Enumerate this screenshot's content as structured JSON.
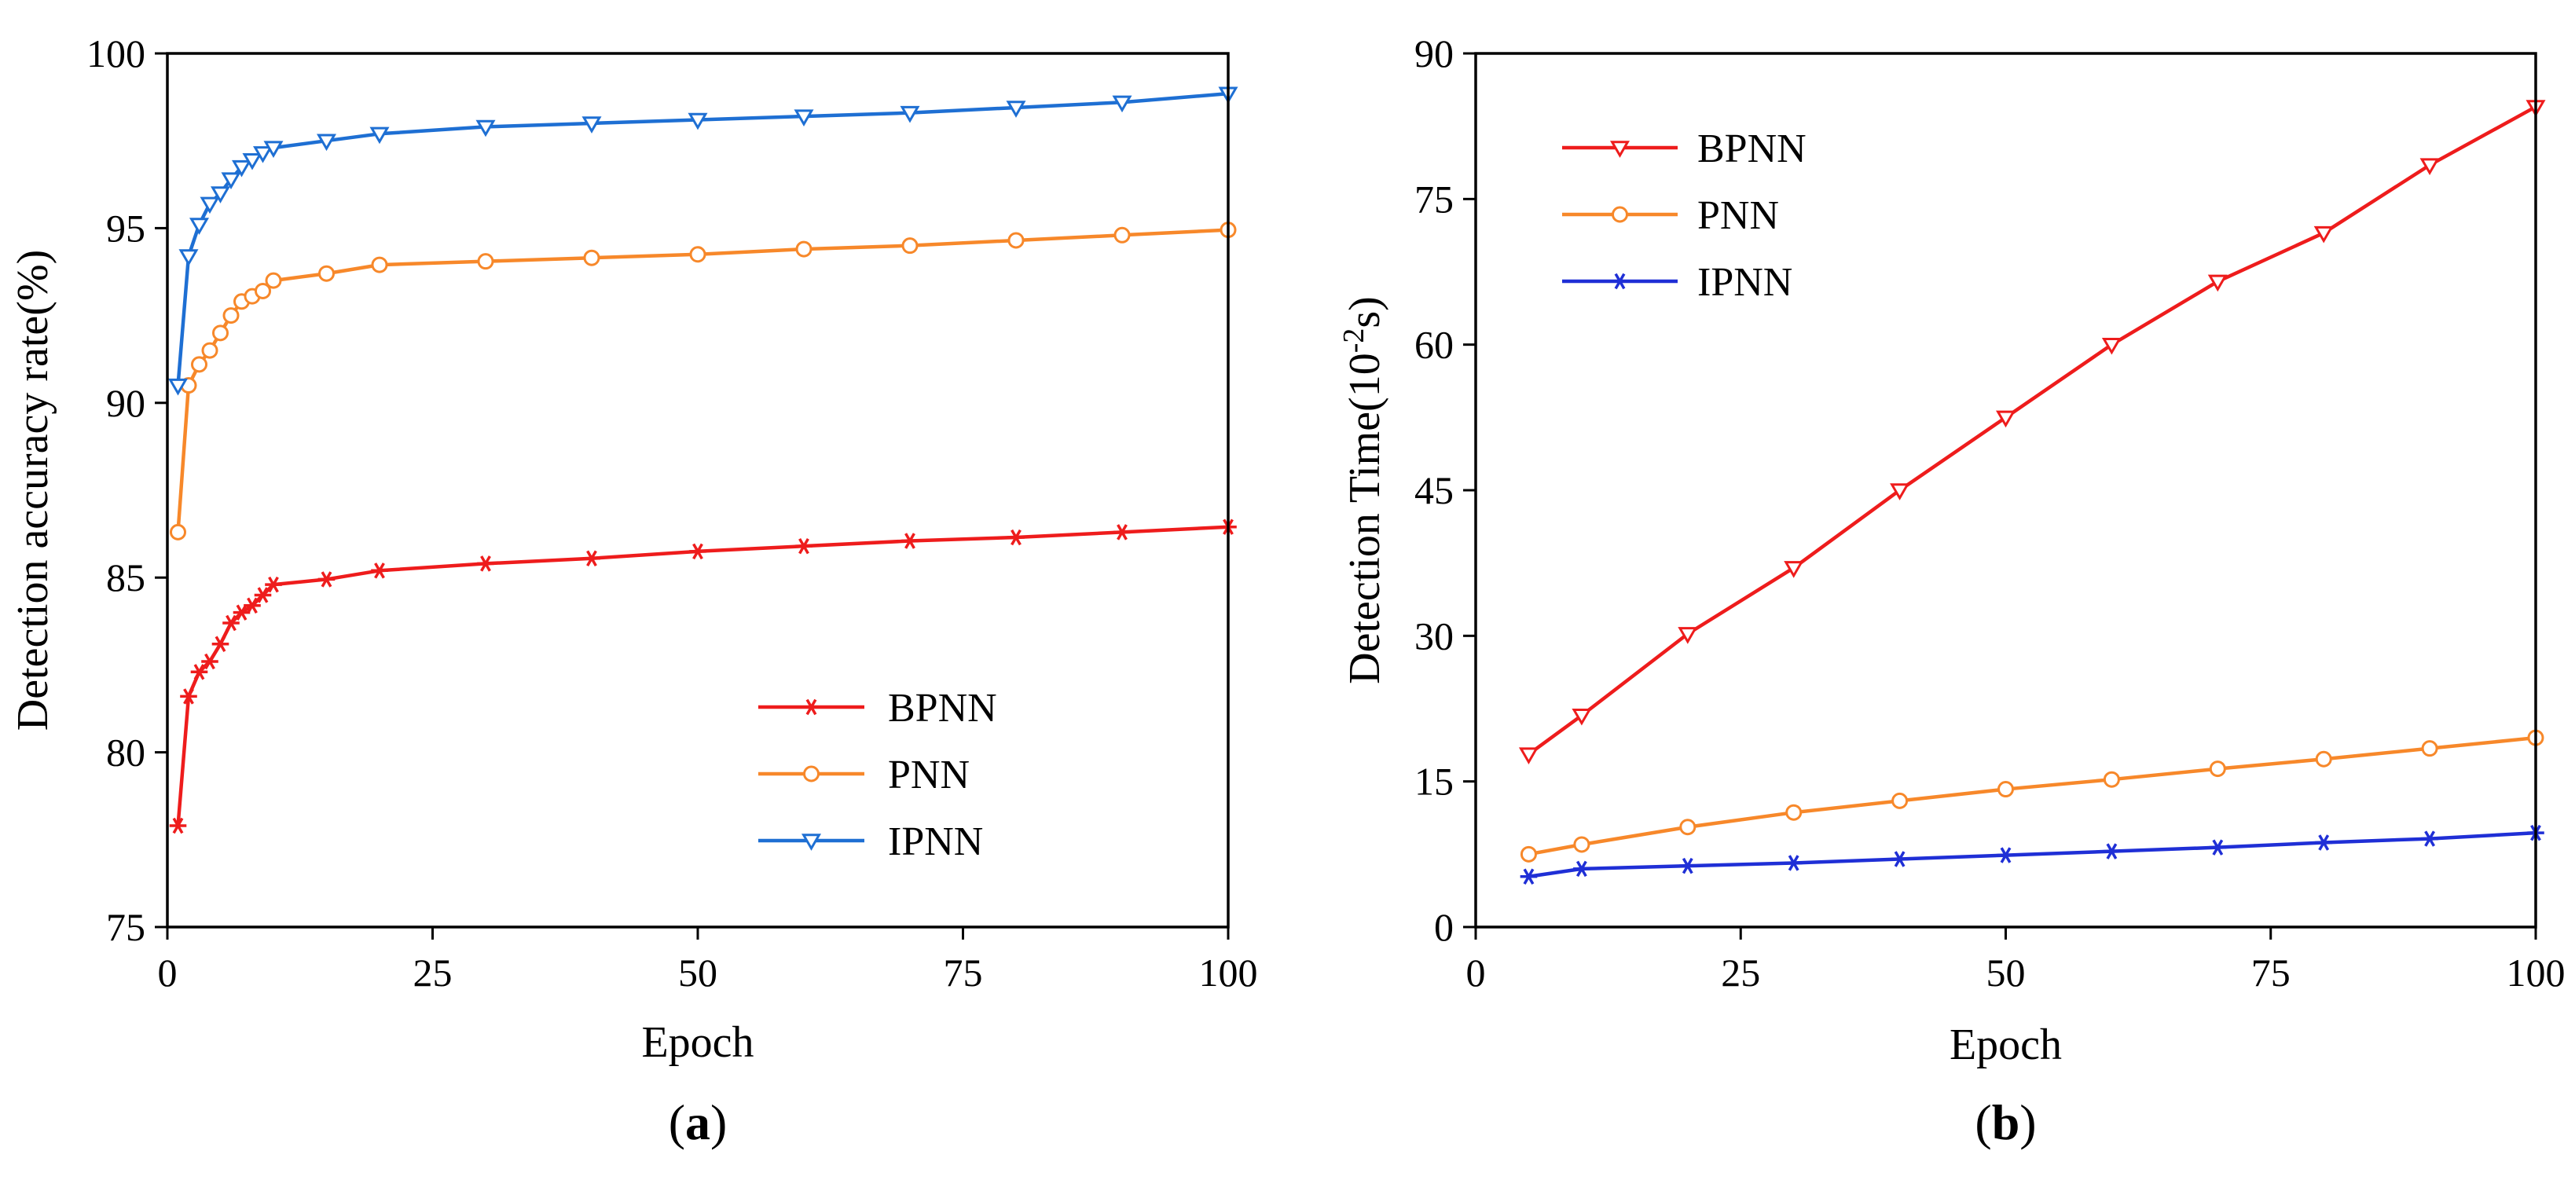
{
  "colors": {
    "BPNN": "#ee1c1c",
    "PNN": "#f7882a",
    "IPNN": "#1e6fd3",
    "IPNN_b": "#1f2fd6"
  },
  "chart_data": [
    {
      "type": "line",
      "panel": "(a)",
      "panel_letter": "a",
      "xlabel": "Epoch",
      "ylabel": "Detection accuracy rate(%)",
      "xlim": [
        0,
        100
      ],
      "ylim": [
        75,
        100
      ],
      "xticks": [
        0,
        25,
        50,
        75,
        100
      ],
      "yticks": [
        75,
        80,
        85,
        90,
        95,
        100
      ],
      "legend_position": "bottom-right",
      "series": [
        {
          "name": "BPNN",
          "marker": "star",
          "color": "#ee1c1c",
          "x": [
            1,
            2,
            3,
            4,
            5,
            6,
            7,
            8,
            9,
            10,
            15,
            20,
            30,
            40,
            50,
            60,
            70,
            80,
            90,
            100
          ],
          "y": [
            77.9,
            81.6,
            82.3,
            82.6,
            83.1,
            83.7,
            84.0,
            84.2,
            84.5,
            84.8,
            84.95,
            85.2,
            85.4,
            85.55,
            85.75,
            85.9,
            86.05,
            86.15,
            86.3,
            86.45
          ]
        },
        {
          "name": "PNN",
          "marker": "circle",
          "color": "#f7882a",
          "x": [
            1,
            2,
            3,
            4,
            5,
            6,
            7,
            8,
            9,
            10,
            15,
            20,
            30,
            40,
            50,
            60,
            70,
            80,
            90,
            100
          ],
          "y": [
            86.3,
            90.5,
            91.1,
            91.5,
            92.0,
            92.5,
            92.9,
            93.05,
            93.2,
            93.5,
            93.7,
            93.95,
            94.05,
            94.15,
            94.25,
            94.4,
            94.5,
            94.65,
            94.8,
            94.95
          ]
        },
        {
          "name": "IPNN",
          "marker": "triangle-down",
          "color": "#1e6fd3",
          "x": [
            1,
            2,
            3,
            4,
            5,
            6,
            7,
            8,
            9,
            10,
            15,
            20,
            30,
            40,
            50,
            60,
            70,
            80,
            90,
            100
          ],
          "y": [
            90.5,
            94.2,
            95.1,
            95.7,
            96.0,
            96.4,
            96.75,
            96.95,
            97.15,
            97.3,
            97.5,
            97.7,
            97.9,
            98.0,
            98.1,
            98.2,
            98.3,
            98.45,
            98.6,
            98.85
          ]
        }
      ]
    },
    {
      "type": "line",
      "panel": "(b)",
      "panel_letter": "b",
      "xlabel": "Epoch",
      "ylabel_prefix": "Detection Time(10",
      "ylabel_exp": "-2",
      "ylabel_suffix": "s)",
      "xlim": [
        0,
        100
      ],
      "ylim": [
        0,
        90
      ],
      "xticks": [
        0,
        25,
        50,
        75,
        100
      ],
      "yticks": [
        0,
        15,
        30,
        45,
        60,
        75,
        90
      ],
      "legend_position": "top-left",
      "series": [
        {
          "name": "BPNN",
          "marker": "triangle-down",
          "color": "#ee1c1c",
          "x": [
            5,
            10,
            20,
            30,
            40,
            50,
            60,
            70,
            80,
            90,
            100
          ],
          "y": [
            17.8,
            21.8,
            30.2,
            37.0,
            45.0,
            52.5,
            60.0,
            66.5,
            71.5,
            78.5,
            84.5
          ]
        },
        {
          "name": "PNN",
          "marker": "circle",
          "color": "#f7882a",
          "x": [
            5,
            10,
            20,
            30,
            40,
            50,
            60,
            70,
            80,
            90,
            100
          ],
          "y": [
            7.5,
            8.5,
            10.3,
            11.8,
            13.0,
            14.2,
            15.2,
            16.3,
            17.3,
            18.4,
            19.5
          ]
        },
        {
          "name": "IPNN",
          "marker": "star",
          "color": "#1f2fd6",
          "x": [
            5,
            10,
            20,
            30,
            40,
            50,
            60,
            70,
            80,
            90,
            100
          ],
          "y": [
            5.2,
            6.0,
            6.3,
            6.6,
            7.0,
            7.4,
            7.8,
            8.2,
            8.7,
            9.1,
            9.7
          ]
        }
      ]
    }
  ]
}
